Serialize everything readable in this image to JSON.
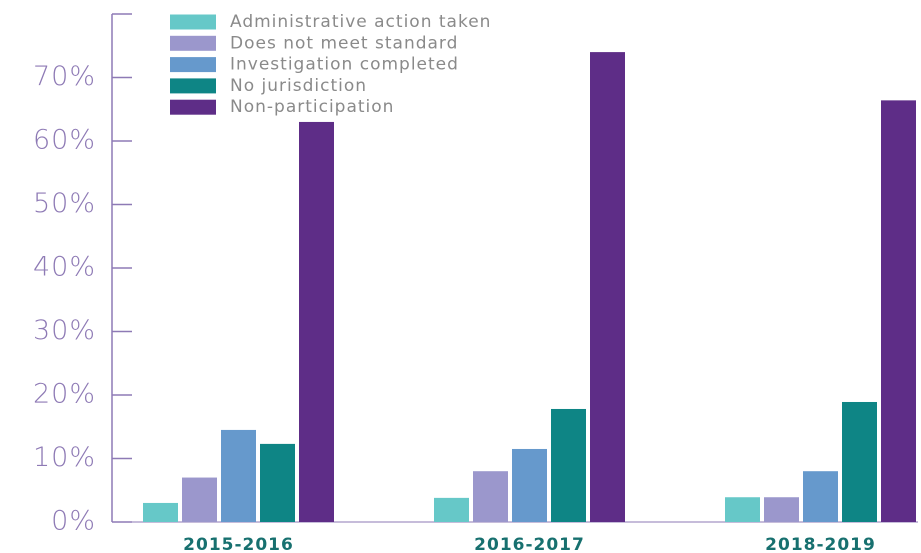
{
  "chart_data": {
    "type": "bar",
    "categories": [
      "2015-2016",
      "2016-2017",
      "2018-2019"
    ],
    "series": [
      {
        "name": "Administrative action taken",
        "color": "#66c8c8",
        "values": [
          3,
          3.8,
          3.9
        ]
      },
      {
        "name": "Does not meet standard",
        "color": "#9b97cc",
        "values": [
          7,
          8,
          3.9
        ]
      },
      {
        "name": "Investigation completed",
        "color": "#6699cc",
        "values": [
          14.5,
          11.5,
          8
        ]
      },
      {
        "name": "No jurisdiction",
        "color": "#0e8585",
        "values": [
          12.3,
          17.8,
          18.9
        ]
      },
      {
        "name": "Non-participation",
        "color": "#5e2d87",
        "values": [
          63,
          74,
          66.4
        ]
      }
    ],
    "ylim": [
      0,
      80
    ],
    "yticks": [
      {
        "value": 0,
        "label": "0%"
      },
      {
        "value": 10,
        "label": "10%"
      },
      {
        "value": 20,
        "label": "20%"
      },
      {
        "value": 30,
        "label": "30%"
      },
      {
        "value": 40,
        "label": "40%"
      },
      {
        "value": 50,
        "label": "50%"
      },
      {
        "value": 60,
        "label": "60%"
      },
      {
        "value": 70,
        "label": "70%"
      }
    ],
    "grid": false,
    "legend": "top-left"
  }
}
